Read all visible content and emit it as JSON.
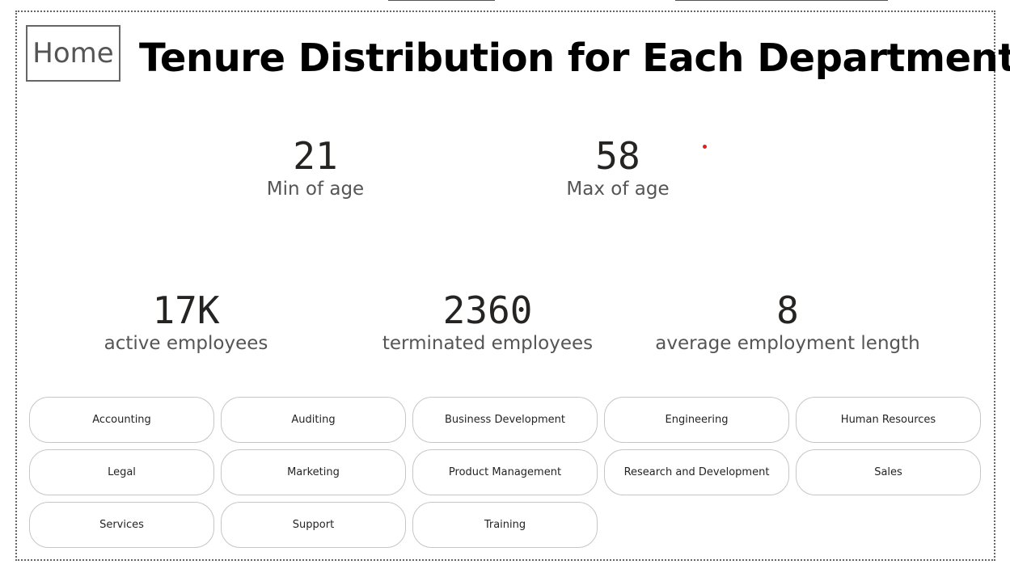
{
  "home_button": "Home",
  "title": "Tenure Distribution for Each Department",
  "kpis": {
    "min_age": {
      "value": "21",
      "label": "Min of age"
    },
    "max_age": {
      "value": "58",
      "label": "Max of age"
    },
    "active": {
      "value": "17K",
      "label": "active employees"
    },
    "terminated": {
      "value": "2360",
      "label": "terminated employees"
    },
    "avg_length": {
      "value": "8",
      "label": "average employment length"
    }
  },
  "departments": [
    "Accounting",
    "Auditing",
    "Business Development",
    "Engineering",
    "Human Resources",
    "Legal",
    "Marketing",
    "Product Management",
    "Research and Development",
    "Sales",
    "Services",
    "Support",
    "Training"
  ],
  "colors": {
    "marker": "#e02020",
    "border": "#666666",
    "chip_border": "#c8c6c4"
  }
}
